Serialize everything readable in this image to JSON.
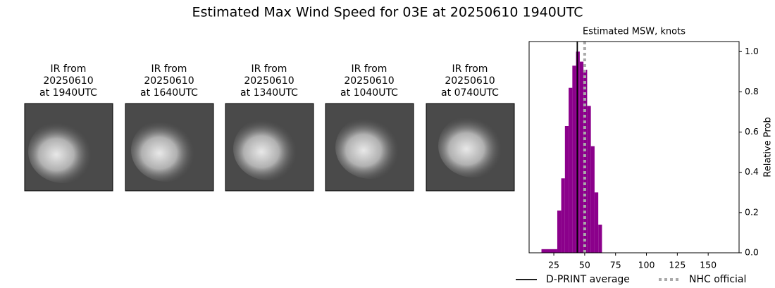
{
  "title": "Estimated Max Wind Speed for 03E at 20250610 1940UTC",
  "panels": [
    {
      "lines": [
        "IR from",
        "20250610",
        "at 1940UTC"
      ]
    },
    {
      "lines": [
        "IR from",
        "20250610",
        "at 1640UTC"
      ]
    },
    {
      "lines": [
        "IR from",
        "20250610",
        "at 1340UTC"
      ]
    },
    {
      "lines": [
        "IR from",
        "20250610",
        "at 1040UTC"
      ]
    },
    {
      "lines": [
        "IR from",
        "20250610",
        "at 0740UTC"
      ]
    }
  ],
  "chart_data": {
    "type": "histogram",
    "title": "Estimated MSW, knots",
    "y_label": "Relative Prob",
    "bins": [
      15,
      27.8,
      31,
      34,
      37,
      40,
      43,
      46,
      49,
      52,
      55,
      58,
      61,
      64
    ],
    "values": [
      0.018,
      0.21,
      0.37,
      0.63,
      0.82,
      0.93,
      1.0,
      0.95,
      0.91,
      0.73,
      0.53,
      0.3,
      0.14
    ],
    "color": "#8b008b",
    "xlim": [
      5,
      175
    ],
    "ylim": [
      0,
      1.05
    ],
    "xticks": [
      25,
      50,
      75,
      100,
      125,
      150
    ],
    "yticks": [
      {
        "value": 0,
        "label": "0.0"
      },
      {
        "value": 0.2,
        "label": "0.2"
      },
      {
        "value": 0.4,
        "label": "0.4"
      },
      {
        "value": 0.6,
        "label": "0.6"
      },
      {
        "value": 0.8,
        "label": "0.8"
      },
      {
        "value": 1,
        "label": "1.0"
      }
    ],
    "lines": [
      {
        "name": "D-PRINT average",
        "value": 44,
        "color": "#000000",
        "style": "solid"
      },
      {
        "name": "NHC official",
        "value": 50,
        "color": "#aaaaaa",
        "style": "dotted"
      }
    ]
  }
}
